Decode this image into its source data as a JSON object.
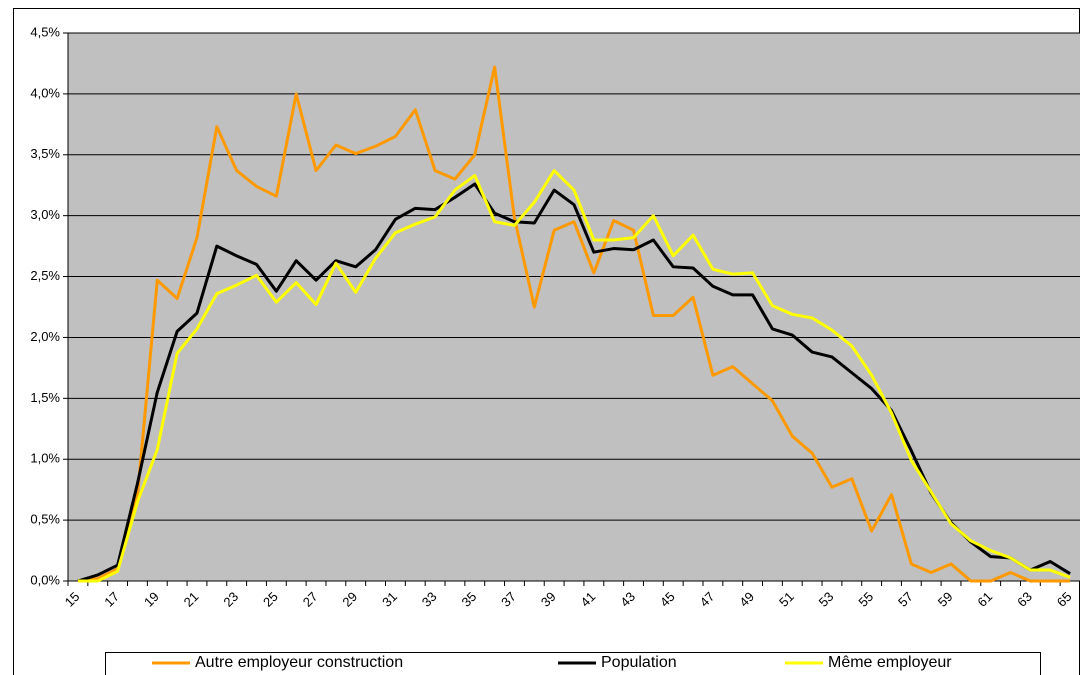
{
  "chart_data": {
    "type": "line",
    "categories": [
      15,
      null,
      17,
      null,
      19,
      null,
      21,
      null,
      23,
      null,
      25,
      null,
      27,
      null,
      29,
      null,
      31,
      null,
      33,
      null,
      35,
      null,
      37,
      null,
      39,
      null,
      41,
      null,
      43,
      null,
      45,
      null,
      47,
      null,
      49,
      null,
      51,
      null,
      53,
      null,
      55,
      null,
      57,
      null,
      59,
      null,
      61,
      null,
      63,
      null,
      65
    ],
    "series": [
      {
        "name": "Autre employeur construction",
        "color": "#ff9900",
        "values": [
          0.0,
          0.02,
          0.1,
          0.7,
          2.47,
          2.32,
          2.82,
          3.73,
          3.37,
          3.24,
          3.16,
          4.0,
          3.37,
          3.58,
          3.51,
          3.57,
          3.65,
          3.87,
          3.37,
          3.3,
          3.5,
          4.22,
          2.98,
          2.25,
          2.88,
          2.95,
          2.53,
          2.96,
          2.88,
          2.18,
          2.18,
          2.33,
          1.69,
          1.76,
          1.62,
          1.48,
          1.19,
          1.05,
          0.77,
          0.84,
          0.41,
          0.71,
          0.14,
          0.07,
          0.14,
          0.0,
          0.0,
          0.07,
          0.0,
          0.0,
          0.0
        ]
      },
      {
        "name": "Population",
        "color": "#000000",
        "values": [
          0.0,
          0.05,
          0.13,
          0.8,
          1.55,
          2.05,
          2.2,
          2.75,
          2.67,
          2.6,
          2.38,
          2.63,
          2.47,
          2.63,
          2.58,
          2.72,
          2.97,
          3.06,
          3.05,
          3.15,
          3.26,
          3.02,
          2.95,
          2.94,
          3.21,
          3.09,
          2.7,
          2.73,
          2.72,
          2.8,
          2.58,
          2.57,
          2.42,
          2.35,
          2.35,
          2.07,
          2.02,
          1.88,
          1.84,
          1.71,
          1.58,
          1.4,
          1.07,
          0.72,
          0.48,
          0.32,
          0.2,
          0.19,
          0.09,
          0.16,
          0.06
        ]
      },
      {
        "name": "Même employeur",
        "color": "#ffff00",
        "values": [
          0.0,
          0.0,
          0.08,
          0.65,
          1.08,
          1.87,
          2.07,
          2.36,
          2.43,
          2.51,
          2.29,
          2.45,
          2.27,
          2.61,
          2.37,
          2.65,
          2.86,
          2.93,
          2.99,
          3.21,
          3.33,
          2.95,
          2.92,
          3.11,
          3.37,
          3.21,
          2.8,
          2.8,
          2.82,
          3.0,
          2.67,
          2.84,
          2.56,
          2.52,
          2.53,
          2.26,
          2.19,
          2.16,
          2.06,
          1.93,
          1.69,
          1.38,
          0.99,
          0.73,
          0.47,
          0.33,
          0.25,
          0.19,
          0.09,
          0.09,
          0.03
        ]
      }
    ],
    "ylim": [
      0,
      4.5
    ],
    "yticks": [
      {
        "value": 0,
        "label": "0,0%"
      },
      {
        "value": 0.5,
        "label": "0,5%"
      },
      {
        "value": 1,
        "label": "1,0%"
      },
      {
        "value": 1.5,
        "label": "1,5%"
      },
      {
        "value": 2,
        "label": "2,0%"
      },
      {
        "value": 2.5,
        "label": "2,5%"
      },
      {
        "value": 3,
        "label": "3,0%"
      },
      {
        "value": 3.5,
        "label": "3,5%"
      },
      {
        "value": 4,
        "label": "4,0%"
      },
      {
        "value": 4.5,
        "label": "4,5%"
      }
    ],
    "grid": true,
    "plot_background": "#c0c0c0",
    "legend": "bottom"
  }
}
